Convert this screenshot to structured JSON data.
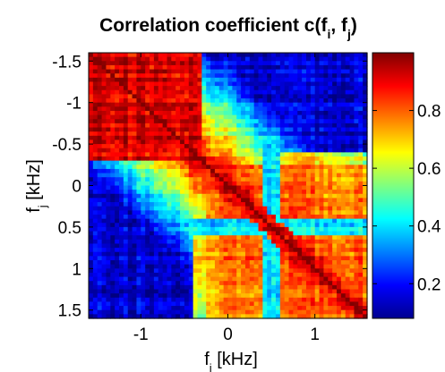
{
  "chart_data": {
    "type": "heatmap",
    "title": {
      "prefix": "Correlation coefficient c(f",
      "sub1": "i",
      "middle": ", f",
      "sub2": "j",
      "suffix": ")"
    },
    "xlabel": {
      "base": "f",
      "sub": "i",
      "unit": " [kHz]"
    },
    "ylabel": {
      "base": "f",
      "sub": "j",
      "unit": " [kHz]"
    },
    "xlim": [
      -1.6,
      1.6
    ],
    "ylim": [
      -1.6,
      1.6
    ],
    "y_inverted": true,
    "x_ticks": [
      {
        "value": -1,
        "label": "-1"
      },
      {
        "value": 0,
        "label": "0"
      },
      {
        "value": 1,
        "label": "1"
      }
    ],
    "y_ticks": [
      {
        "value": -1.5,
        "label": "-1.5"
      },
      {
        "value": -1,
        "label": "-1"
      },
      {
        "value": -0.5,
        "label": "-0.5"
      },
      {
        "value": 0,
        "label": "0"
      },
      {
        "value": 0.5,
        "label": "0.5"
      },
      {
        "value": 1,
        "label": "1"
      },
      {
        "value": 1.5,
        "label": "1.5"
      }
    ],
    "colorbar": {
      "range": [
        0.08,
        1.0
      ],
      "colormap": "jet",
      "ticks": [
        {
          "value": 0.2,
          "label": "0.2"
        },
        {
          "value": 0.4,
          "label": "0.4"
        },
        {
          "value": 0.6,
          "label": "0.6"
        },
        {
          "value": 0.8,
          "label": "0.8"
        }
      ]
    },
    "grid_resolution": 64,
    "matrix_description_values": {
      "diagonal": 1.0,
      "low_frequency_block": {
        "f_range": [
          -1.6,
          -0.5
        ],
        "value": 0.92
      },
      "high_frequency_block": {
        "f_range": [
          0.0,
          1.6
        ],
        "value": 0.82
      },
      "cross_block_min": 0.1
    }
  }
}
